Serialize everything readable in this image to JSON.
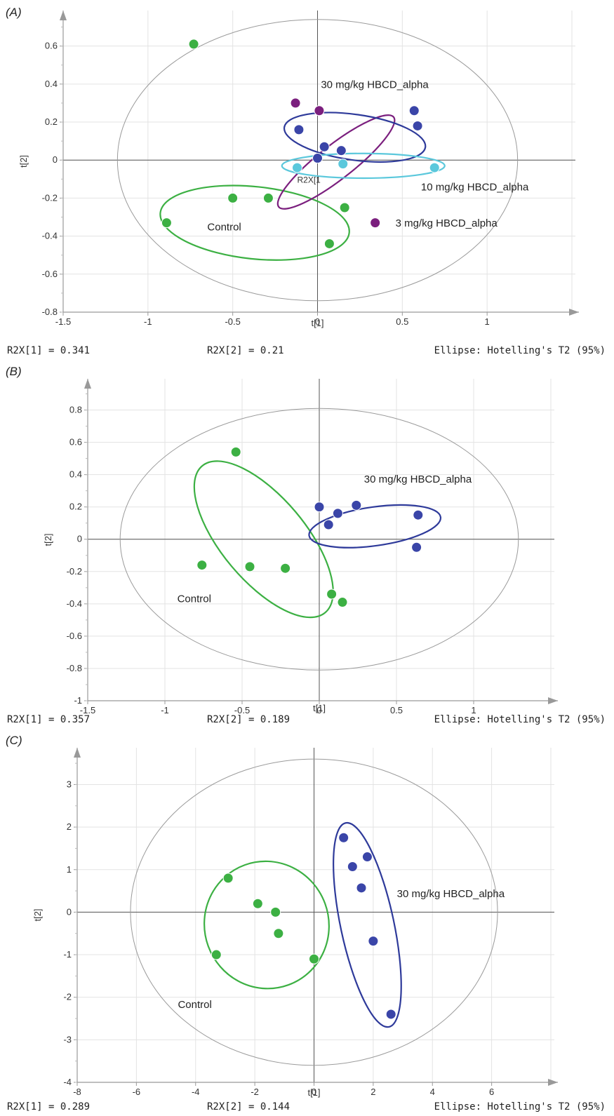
{
  "chart_data": [
    {
      "type": "scatter",
      "panel_label": "(A)",
      "xlabel": "t[1]",
      "ylabel": "t[2]",
      "xlim": [
        -1.5,
        1.5
      ],
      "ylim": [
        -0.8,
        0.75
      ],
      "xticks": [
        -1.5,
        -1,
        -0.5,
        0,
        0.5,
        1
      ],
      "yticks": [
        -0.8,
        -0.6,
        -0.4,
        -0.2,
        0,
        0.2,
        0.4,
        0.6
      ],
      "grid": true,
      "footer": {
        "r2x1": "R2X[1] = 0.341",
        "r2x2": "R2X[2] = 0.21",
        "ellipse": "Ellipse: Hotelling's T2 (95%)"
      },
      "hotelling_ellipse": {
        "rx": 1.18,
        "ry": 0.74
      },
      "series": [
        {
          "color": "#3cb043",
          "points": [
            [
              -0.73,
              0.61
            ],
            [
              -0.5,
              -0.2
            ],
            [
              -0.29,
              -0.2
            ],
            [
              -0.89,
              -0.33
            ],
            [
              0.16,
              -0.25
            ],
            [
              0.07,
              -0.44
            ]
          ]
        },
        {
          "color": "#7b1f7e",
          "points": [
            [
              -0.13,
              0.3
            ],
            [
              0.01,
              0.26
            ],
            [
              0.34,
              -0.33
            ]
          ]
        },
        {
          "color": "#3a45a8",
          "points": [
            [
              -0.11,
              0.16
            ],
            [
              0.04,
              0.07
            ],
            [
              0.14,
              0.05
            ],
            [
              0.57,
              0.26
            ],
            [
              0.59,
              0.18
            ],
            [
              0.0,
              0.01
            ]
          ]
        },
        {
          "color": "#5bc8dc",
          "points": [
            [
              -0.12,
              -0.04
            ],
            [
              0.15,
              -0.02
            ],
            [
              0.69,
              -0.04
            ]
          ]
        }
      ],
      "group_ellipses": [
        {
          "color": "#3cb043",
          "cx": -0.37,
          "cy": -0.33,
          "rx": 0.56,
          "ry": 0.19,
          "angle": 6
        },
        {
          "color": "#7b1f7e",
          "cx": 0.11,
          "cy": -0.01,
          "rx": 0.43,
          "ry": 0.09,
          "angle": -38
        },
        {
          "color": "#2e3a9a",
          "cx": 0.22,
          "cy": 0.12,
          "rx": 0.42,
          "ry": 0.12,
          "angle": 8
        },
        {
          "color": "#5bc8dc",
          "cx": 0.27,
          "cy": -0.03,
          "rx": 0.48,
          "ry": 0.065,
          "angle": 0
        }
      ],
      "annotations": [
        {
          "text": "30 mg/kg HBCD_alpha",
          "x": 0.02,
          "y": 0.38,
          "cls": "anno"
        },
        {
          "text": "10 mg/kg HBCD_alpha",
          "x": 0.61,
          "y": -0.16,
          "cls": "anno"
        },
        {
          "text": "3 mg/kg HBCD_alpha",
          "x": 0.46,
          "y": -0.35,
          "cls": "anno"
        },
        {
          "text": "Control",
          "x": -0.65,
          "y": -0.37,
          "cls": "anno"
        },
        {
          "text": "R2X[1",
          "x": -0.12,
          "y": -0.12,
          "cls": "anno-small"
        }
      ]
    },
    {
      "type": "scatter",
      "panel_label": "(B)",
      "xlabel": "t[1]",
      "ylabel": "t[2]",
      "xlim": [
        -1.5,
        1.5
      ],
      "ylim": [
        -1.0,
        0.95
      ],
      "xticks": [
        -1.5,
        -1,
        -0.5,
        0,
        0.5,
        1
      ],
      "yticks": [
        -1,
        -0.8,
        -0.6,
        -0.4,
        -0.2,
        0,
        0.2,
        0.4,
        0.6,
        0.8
      ],
      "grid": true,
      "footer": {
        "r2x1": "R2X[1] = 0.357",
        "r2x2": "R2X[2] = 0.189",
        "ellipse": "Ellipse: Hotelling's T2 (95%)"
      },
      "hotelling_ellipse": {
        "rx": 1.29,
        "ry": 0.81
      },
      "series": [
        {
          "color": "#3cb043",
          "points": [
            [
              -0.54,
              0.54
            ],
            [
              -0.76,
              -0.16
            ],
            [
              -0.45,
              -0.17
            ],
            [
              -0.22,
              -0.18
            ],
            [
              0.08,
              -0.34
            ],
            [
              0.15,
              -0.39
            ]
          ]
        },
        {
          "color": "#3a45a8",
          "points": [
            [
              0.0,
              0.2
            ],
            [
              0.06,
              0.09
            ],
            [
              0.12,
              0.16
            ],
            [
              0.24,
              0.21
            ],
            [
              0.64,
              0.15
            ],
            [
              0.63,
              -0.05
            ]
          ]
        }
      ],
      "group_ellipses": [
        {
          "color": "#3cb043",
          "cx": -0.36,
          "cy": 0.0,
          "rx": 0.62,
          "ry": 0.26,
          "angle": 50
        },
        {
          "color": "#2e3a9a",
          "cx": 0.36,
          "cy": 0.08,
          "rx": 0.43,
          "ry": 0.12,
          "angle": -8
        }
      ],
      "annotations": [
        {
          "text": "30 mg/kg HBCD_alpha",
          "x": 0.29,
          "y": 0.35,
          "cls": "anno"
        },
        {
          "text": "Control",
          "x": -0.92,
          "y": -0.39,
          "cls": "anno"
        }
      ]
    },
    {
      "type": "scatter",
      "panel_label": "(C)",
      "xlabel": "t[1]",
      "ylabel": "t[2]",
      "xlim": [
        -8,
        8
      ],
      "ylim": [
        -4,
        3.7
      ],
      "xticks": [
        -8,
        -6,
        -4,
        -2,
        0,
        2,
        4,
        6
      ],
      "yticks": [
        -4,
        -3,
        -2,
        -1,
        0,
        1,
        2,
        3
      ],
      "grid": true,
      "footer": {
        "r2x1": "R2X[1] = 0.289",
        "r2x2": "R2X[2] = 0.144",
        "ellipse": "Ellipse: Hotelling's T2 (95%)"
      },
      "hotelling_ellipse": {
        "rx": 6.2,
        "ry": 3.6
      },
      "series": [
        {
          "color": "#3cb043",
          "points": [
            [
              -2.9,
              0.8
            ],
            [
              -1.9,
              0.2
            ],
            [
              -1.3,
              0.0
            ],
            [
              -1.2,
              -0.5
            ],
            [
              -3.3,
              -1.0
            ],
            [
              0.0,
              -1.1
            ]
          ]
        },
        {
          "color": "#3a45a8",
          "points": [
            [
              1.0,
              1.75
            ],
            [
              1.8,
              1.3
            ],
            [
              1.3,
              1.07
            ],
            [
              1.6,
              0.57
            ],
            [
              2.0,
              -0.68
            ],
            [
              2.6,
              -2.4
            ]
          ]
        }
      ],
      "group_ellipses": [
        {
          "color": "#3cb043",
          "cx": -1.6,
          "cy": -0.3,
          "rx": 2.1,
          "ry": 1.5,
          "angle": -20
        },
        {
          "color": "#2e3a9a",
          "cx": 1.8,
          "cy": -0.3,
          "rx": 0.9,
          "ry": 2.45,
          "angle": -12
        }
      ],
      "annotations": [
        {
          "text": "30 mg/kg HBCD_alpha",
          "x": 2.8,
          "y": 0.35,
          "cls": "anno"
        },
        {
          "text": "Control",
          "x": -4.6,
          "y": -2.25,
          "cls": "anno"
        }
      ]
    }
  ]
}
